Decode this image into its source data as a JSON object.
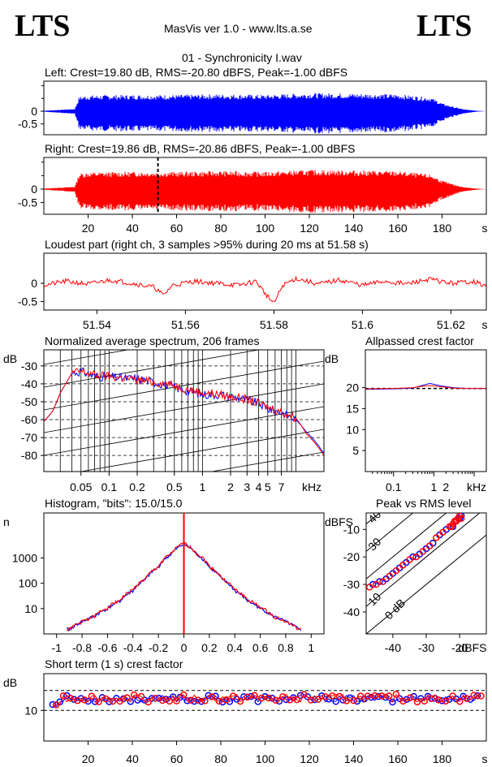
{
  "header": {
    "logo_left": "LTS",
    "logo_right": "LTS",
    "app_title": "MasVis ver 1.0 - www.lts.a.se",
    "file_name": "01 - Synchronicity I.wav"
  },
  "colors": {
    "left": "#0000ff",
    "right": "#ff0000",
    "axis": "#000000"
  },
  "chart_data": [
    {
      "id": "left-waveform",
      "type": "area",
      "title": "Left: Crest=19.80 dB, RMS=-20.80 dBFS, Peak=-1.00 dBFS",
      "series": [
        {
          "name": "Left",
          "color": "#0000ff"
        }
      ],
      "yticks": [
        "0",
        "-0.5"
      ],
      "ylim": [
        -1,
        1
      ],
      "xlim": [
        0,
        200
      ],
      "envelope": {
        "x": [
          0,
          5,
          14,
          16,
          20,
          40,
          60,
          80,
          100,
          120,
          140,
          160,
          175,
          180,
          185,
          190,
          196,
          200
        ],
        "amplitude": [
          0.02,
          0.05,
          0.1,
          0.65,
          0.7,
          0.72,
          0.72,
          0.75,
          0.72,
          0.8,
          0.78,
          0.75,
          0.6,
          0.35,
          0.2,
          0.08,
          0.02,
          0.0
        ]
      }
    },
    {
      "id": "right-waveform",
      "type": "area",
      "title": "Right: Crest=19.86 dB, RMS=-20.86 dBFS, Peak=-1.00 dBFS",
      "series": [
        {
          "name": "Right",
          "color": "#ff0000"
        }
      ],
      "yticks": [
        "0",
        "-0.5"
      ],
      "ylim": [
        -1,
        1
      ],
      "xlim": [
        0,
        200
      ],
      "xticks": [
        "20",
        "40",
        "60",
        "80",
        "100",
        "120",
        "140",
        "160",
        "180"
      ],
      "xunit": "s",
      "marker_x": 51.58,
      "envelope": {
        "x": [
          0,
          5,
          14,
          16,
          20,
          40,
          60,
          80,
          100,
          120,
          140,
          160,
          175,
          180,
          185,
          190,
          196,
          200
        ],
        "amplitude": [
          0.02,
          0.05,
          0.1,
          0.65,
          0.7,
          0.72,
          0.72,
          0.75,
          0.72,
          0.8,
          0.78,
          0.75,
          0.6,
          0.35,
          0.2,
          0.08,
          0.02,
          0.0
        ]
      }
    },
    {
      "id": "loudest-part",
      "type": "line",
      "title": "Loudest part (right ch, 3 samples >95% during 20 ms at 51.58 s)",
      "series": [
        {
          "name": "Right",
          "color": "#ff0000"
        }
      ],
      "yticks": [
        "0",
        "-0.5"
      ],
      "ylim": [
        -1,
        1
      ],
      "xlim": [
        51.528,
        51.628
      ],
      "xticks": [
        "51.54",
        "51.56",
        "51.58",
        "51.6",
        "51.62"
      ],
      "xunit": "s",
      "x": [
        51.528,
        51.533,
        51.538,
        51.543,
        51.548,
        51.553,
        51.555,
        51.557,
        51.562,
        51.567,
        51.572,
        51.576,
        51.578,
        51.58,
        51.582,
        51.585,
        51.59,
        51.595,
        51.6,
        51.605,
        51.61,
        51.615,
        51.62,
        51.625,
        51.628
      ],
      "y": [
        -0.05,
        0.05,
        -0.02,
        0.08,
        0.0,
        -0.1,
        -0.3,
        -0.05,
        0.05,
        0.0,
        -0.05,
        0.05,
        -0.25,
        -0.5,
        -0.05,
        0.12,
        -0.02,
        0.08,
        -0.05,
        0.05,
        -0.02,
        0.1,
        0.0,
        0.05,
        -0.08
      ]
    },
    {
      "id": "spectrum",
      "type": "line",
      "title": "Normalized average spectrum, 206 frames",
      "ylabel": "dB",
      "yticks": [
        "-30",
        "-40",
        "-50",
        "-60",
        "-70",
        "-80"
      ],
      "ylim": [
        -89,
        -21
      ],
      "xlim": [
        0.02,
        20
      ],
      "xscale": "log",
      "xticks": [
        "0.05",
        "0.1",
        "0.2",
        "0.5",
        "1",
        "2",
        "3",
        "4",
        "5",
        "7"
      ],
      "xtick_values": [
        0.05,
        0.1,
        0.2,
        0.5,
        1,
        2,
        3,
        4,
        5,
        7
      ],
      "xunit": "kHz",
      "series": [
        {
          "name": "Left",
          "color": "#0000ff",
          "x": [
            0.02,
            0.025,
            0.03,
            0.035,
            0.04,
            0.05,
            0.07,
            0.1,
            0.15,
            0.2,
            0.3,
            0.5,
            0.7,
            1,
            1.5,
            2,
            3,
            4,
            5,
            7,
            10,
            13,
            16,
            20
          ],
          "y": [
            -61,
            -55,
            -45,
            -39,
            -34,
            -33,
            -36,
            -36,
            -37,
            -37,
            -39,
            -42,
            -44,
            -46,
            -46,
            -47,
            -49,
            -51,
            -54,
            -56,
            -60,
            -67,
            -72,
            -79
          ]
        },
        {
          "name": "Right",
          "color": "#ff0000",
          "x": [
            0.02,
            0.025,
            0.03,
            0.035,
            0.04,
            0.05,
            0.07,
            0.1,
            0.15,
            0.2,
            0.3,
            0.5,
            0.7,
            1,
            1.5,
            2,
            3,
            4,
            5,
            7,
            10,
            13,
            16,
            20
          ],
          "y": [
            -61,
            -55,
            -45,
            -39,
            -34,
            -33,
            -35,
            -36,
            -37,
            -38,
            -39,
            -41,
            -43,
            -45,
            -46,
            -47,
            -49,
            -51,
            -53,
            -56,
            -59,
            -68,
            -73,
            -80
          ]
        }
      ]
    },
    {
      "id": "allpassed-crest",
      "type": "line",
      "title": "Allpassed crest factor",
      "ylabel": "dB",
      "yticks": [
        "20",
        "15",
        "10",
        "5"
      ],
      "ylim": [
        0,
        29
      ],
      "xlim": [
        0.02,
        20
      ],
      "xscale": "log",
      "xticks": [
        "0.1",
        "1",
        "2",
        "kHz"
      ],
      "xtick_values": [
        0.1,
        1,
        2
      ],
      "reference_line": 19.8,
      "series": [
        {
          "name": "Left",
          "color": "#0000ff",
          "x": [
            0.02,
            0.1,
            0.3,
            0.5,
            0.8,
            1.5,
            3,
            7,
            20
          ],
          "y": [
            19.6,
            19.7,
            19.9,
            20.5,
            21.0,
            20.4,
            20.0,
            19.8,
            19.8
          ]
        },
        {
          "name": "Right",
          "color": "#ff0000",
          "x": [
            0.02,
            0.1,
            0.3,
            0.5,
            0.8,
            1.5,
            3,
            7,
            20
          ],
          "y": [
            19.7,
            19.8,
            20.0,
            20.3,
            20.5,
            20.2,
            19.9,
            19.8,
            19.8
          ]
        }
      ]
    },
    {
      "id": "histogram",
      "type": "line",
      "title": "Histogram, \"bits\": 15.0/15.0",
      "ylabel": "n",
      "yscale": "log",
      "yticks": [
        "1000",
        "100",
        "10"
      ],
      "ytick_values": [
        1000,
        100,
        10
      ],
      "ylim": [
        1,
        60000
      ],
      "xlim": [
        -1.1,
        1.1
      ],
      "xticks": [
        "-1",
        "-0.8",
        "-0.6",
        "-0.4",
        "-0.2",
        "0",
        "0.2",
        "0.4",
        "0.6",
        "0.8",
        "1"
      ],
      "xtick_values": [
        -1,
        -0.8,
        -0.6,
        -0.4,
        -0.2,
        0,
        0.2,
        0.4,
        0.6,
        0.8,
        1
      ],
      "series": [
        {
          "name": "Left",
          "color": "#0000ff",
          "x": [
            -0.9,
            -0.8,
            -0.7,
            -0.6,
            -0.5,
            -0.4,
            -0.3,
            -0.2,
            -0.1,
            0,
            0.1,
            0.2,
            0.3,
            0.4,
            0.5,
            0.6,
            0.7,
            0.8,
            0.9
          ],
          "y": [
            1.5,
            3,
            5,
            10,
            20,
            50,
            140,
            420,
            1400,
            3500,
            1400,
            420,
            140,
            50,
            20,
            10,
            5,
            3,
            1.5
          ]
        },
        {
          "name": "Right",
          "color": "#ff0000",
          "x": [
            -0.9,
            -0.8,
            -0.7,
            -0.6,
            -0.5,
            -0.4,
            -0.3,
            -0.2,
            -0.1,
            0,
            0.1,
            0.2,
            0.3,
            0.4,
            0.5,
            0.6,
            0.7,
            0.8,
            0.9
          ],
          "y": [
            1.5,
            3,
            5,
            11,
            22,
            55,
            150,
            450,
            1500,
            3800,
            1500,
            450,
            150,
            55,
            22,
            11,
            5,
            3,
            1.5
          ]
        }
      ]
    },
    {
      "id": "peak-vs-rms",
      "type": "scatter",
      "title": "Peak vs RMS level",
      "ylabel": "dBFS",
      "xlabel": "dBFS",
      "xticks": [
        "-40",
        "-30",
        "-20"
      ],
      "xtick_values": [
        -40,
        -30,
        -20
      ],
      "yticks": [
        "-10",
        "-20",
        "-30",
        "-40"
      ],
      "ytick_values": [
        -10,
        -20,
        -30,
        -40
      ],
      "xlim": [
        -48,
        -12
      ],
      "ylim": [
        -48,
        -4
      ],
      "diagonal_labels": [
        "40",
        "30",
        "10",
        "0 dB"
      ],
      "diagonal_offsets": [
        40,
        30,
        20,
        10,
        0
      ],
      "series": [
        {
          "name": "Left",
          "color": "#0000ff",
          "x": [
            -46,
            -44,
            -42,
            -40,
            -38,
            -36,
            -34,
            -32,
            -30,
            -28,
            -26,
            -24,
            -22,
            -21,
            -20,
            -19.5
          ],
          "y": [
            -30,
            -29,
            -28,
            -26,
            -24,
            -22,
            -20,
            -19,
            -17,
            -15,
            -12,
            -10,
            -9,
            -7,
            -6,
            -5
          ]
        },
        {
          "name": "Right",
          "color": "#ff0000",
          "x": [
            -47,
            -45,
            -43,
            -41,
            -39,
            -37,
            -35,
            -33,
            -31,
            -29,
            -27,
            -25,
            -23,
            -22,
            -21,
            -20.5,
            -20,
            -19.5,
            -21.5,
            -22.5
          ],
          "y": [
            -31,
            -30,
            -29,
            -27,
            -25,
            -23,
            -21,
            -20,
            -18,
            -16,
            -13,
            -11,
            -9,
            -8,
            -7,
            -6,
            -5,
            -6,
            -7,
            -9
          ]
        }
      ]
    },
    {
      "id": "short-term-crest",
      "type": "scatter",
      "title": "Short term (1 s) crest factor",
      "ylabel": "dB",
      "yticks": [
        "10"
      ],
      "ytick_values": [
        10
      ],
      "ylim": [
        0,
        22
      ],
      "xlim": [
        0,
        200
      ],
      "xticks": [
        "20",
        "40",
        "60",
        "80",
        "100",
        "120",
        "140",
        "160",
        "180"
      ],
      "xunit": "s",
      "reference_lines": [
        10,
        16.5
      ],
      "series": [
        {
          "name": "Left",
          "color": "#0000ff",
          "t_start": 4,
          "t_end": 198,
          "mean": 13.8,
          "spread": 1.1
        },
        {
          "name": "Right",
          "color": "#ff0000",
          "t_start": 4,
          "t_end": 198,
          "mean": 14.0,
          "spread": 1.3
        }
      ]
    }
  ]
}
